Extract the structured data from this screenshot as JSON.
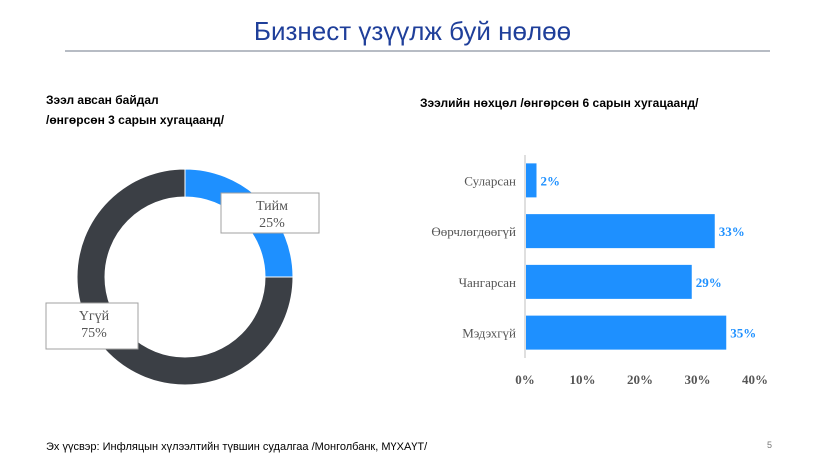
{
  "slide": {
    "title": "Бизнест үзүүлж буй нөлөө",
    "source": "Эх үүсвэр: Инфляцын хүлээлтийн түвшин судалгаа /Монголбанк, МҮХАҮТ/",
    "page_number": "5"
  },
  "chart_data": [
    {
      "type": "pie",
      "title_line1": "Зээл авсан байдал",
      "title_line2": "/өнгөрсөн 3 сарын хугацаанд/",
      "slices": [
        {
          "label": "Тийм",
          "value": 25,
          "value_label": "25%",
          "color": "#1e90ff"
        },
        {
          "label": "Үгүй",
          "value": 75,
          "value_label": "75%",
          "color": "#3b3f45"
        }
      ]
    },
    {
      "type": "bar",
      "orientation": "horizontal",
      "title": "Зээлийн нөхцөл /өнгөрсөн 6 сарын хугацаанд/",
      "categories": [
        "Суларсан",
        "Өөрчлөгдөөгүй",
        "Чангарсан",
        "Мэдэхгүй"
      ],
      "values": [
        2,
        33,
        29,
        35
      ],
      "value_labels": [
        "2%",
        "33%",
        "29%",
        "35%"
      ],
      "xlim": [
        0,
        40
      ],
      "ticks": [
        0,
        10,
        20,
        30,
        40
      ],
      "tick_labels": [
        "0%",
        "10%",
        "20%",
        "30%",
        "40%"
      ],
      "bar_color": "#1e90ff",
      "label_color": "#1e90ff",
      "grid": false
    }
  ]
}
